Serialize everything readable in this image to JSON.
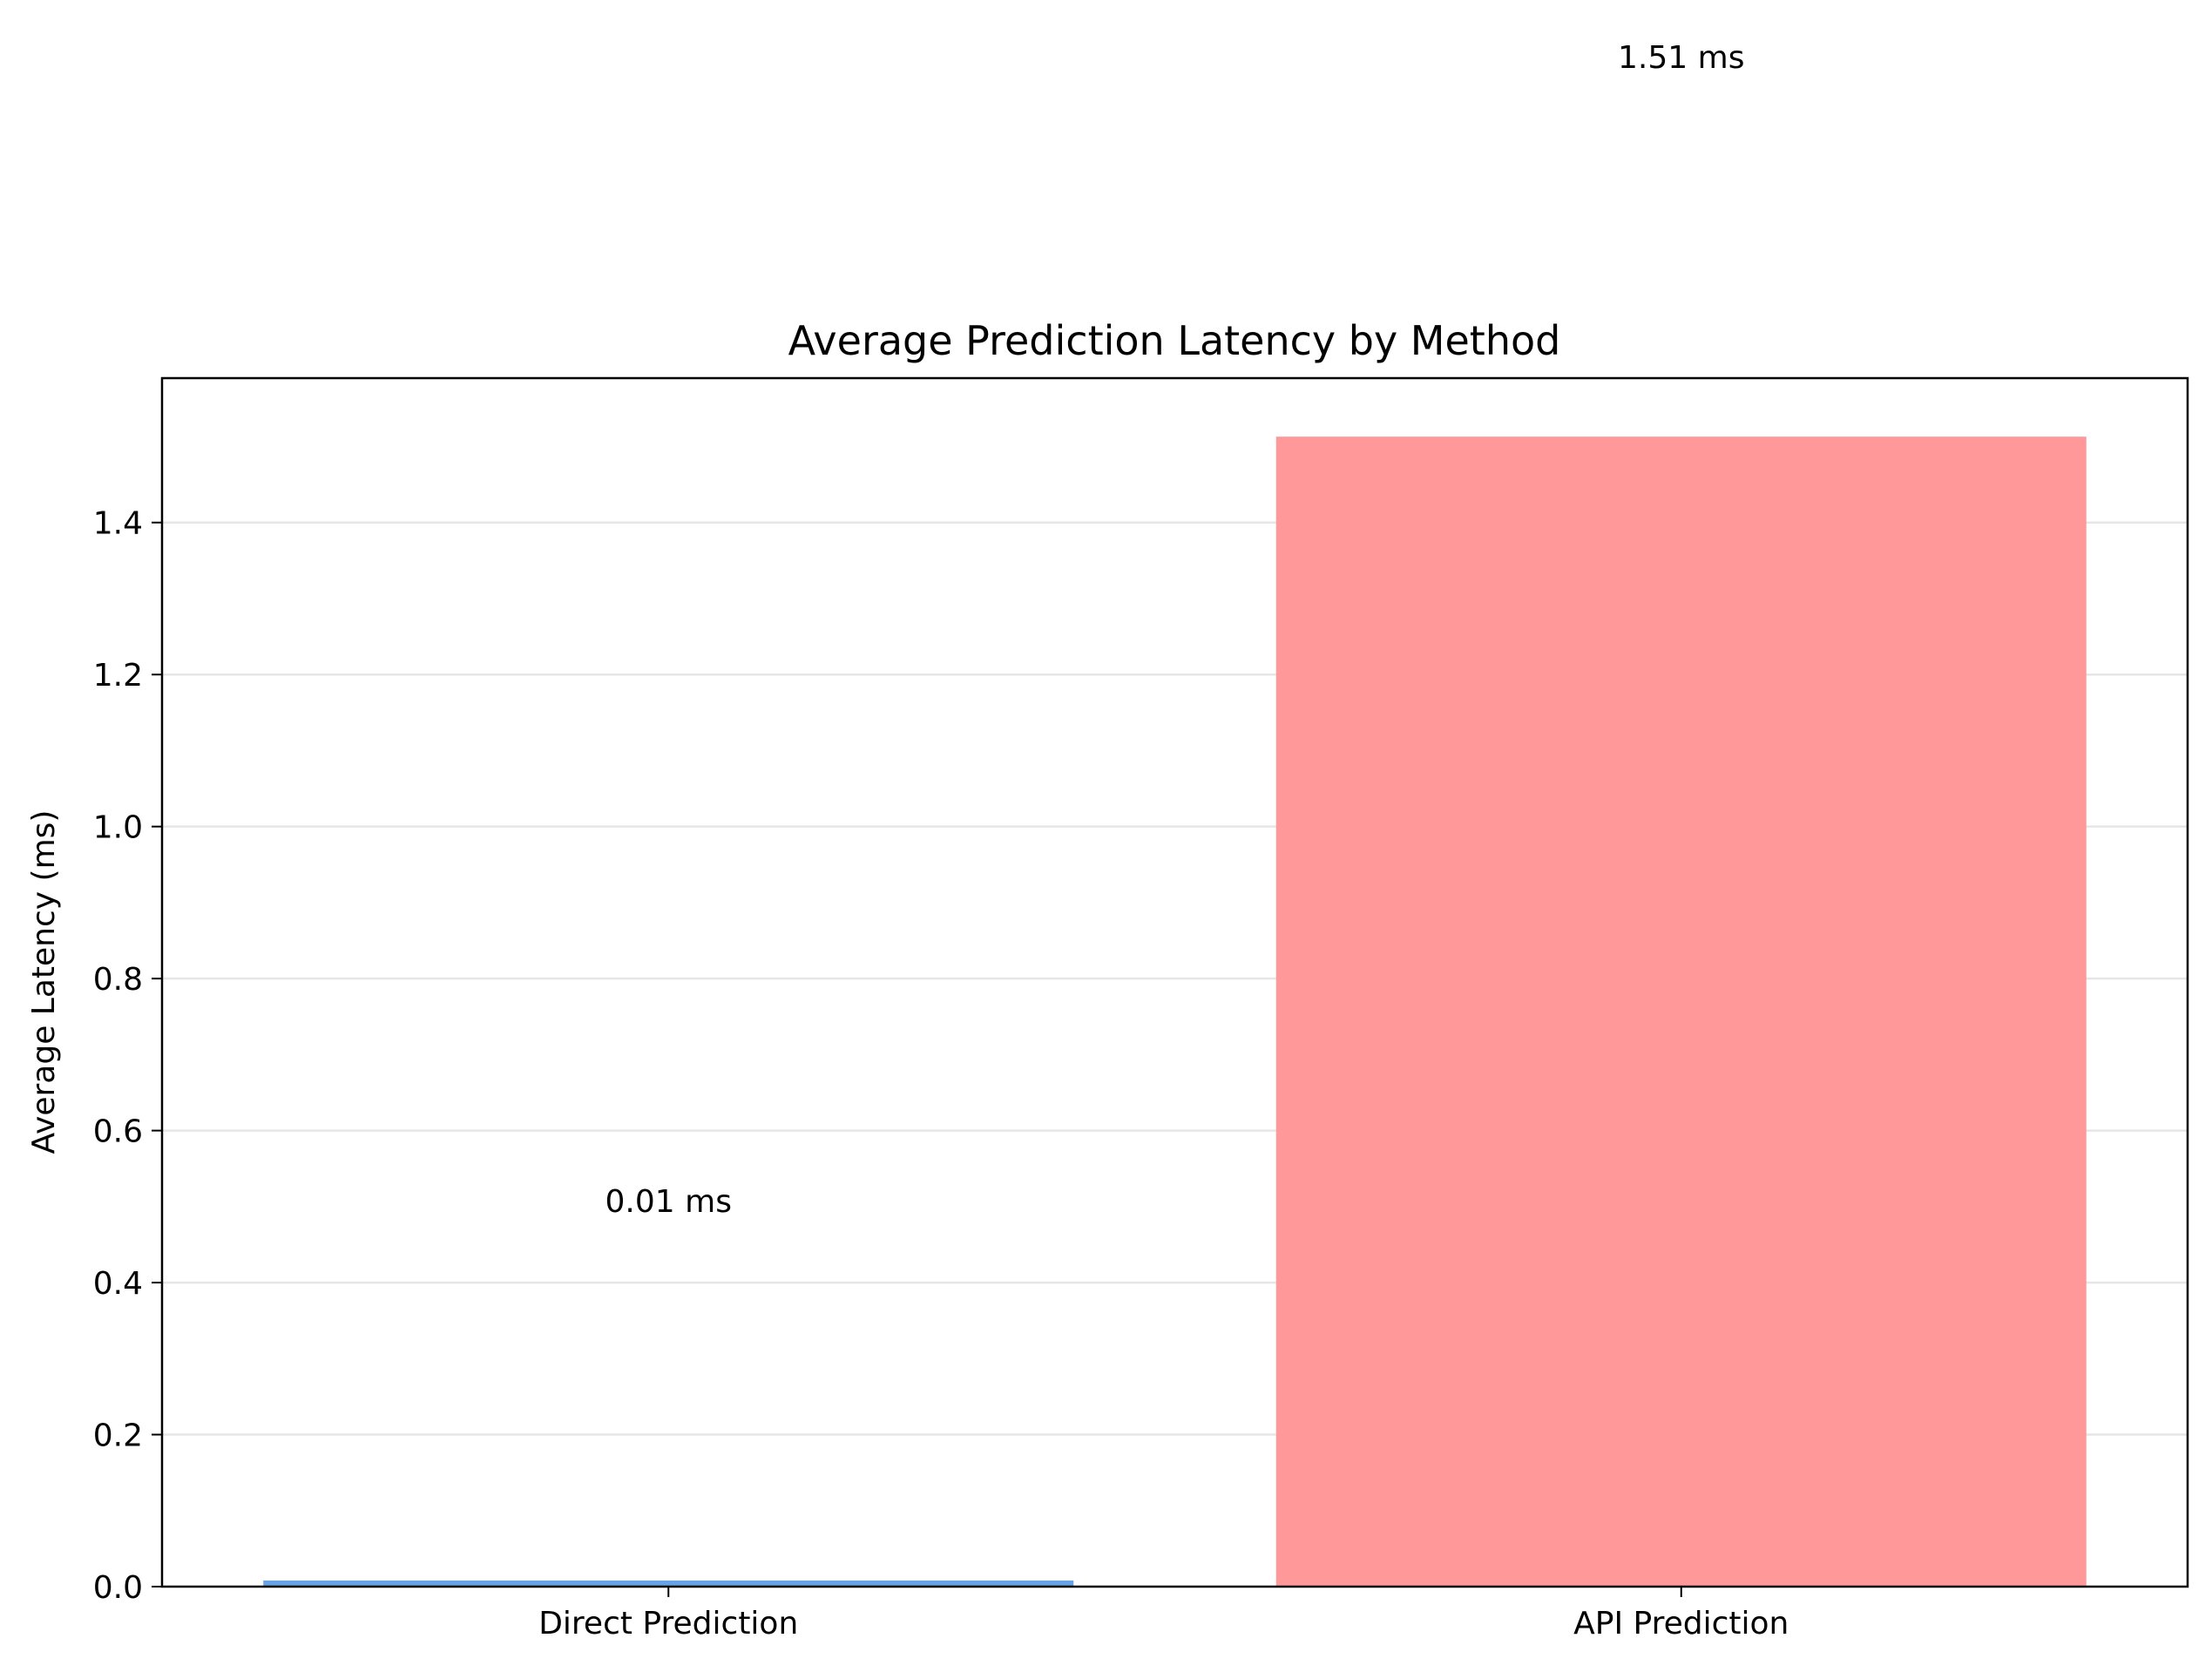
{
  "chart_data": {
    "type": "bar",
    "title": "Average Prediction Latency by Method",
    "xlabel": "",
    "ylabel": "Average Latency (ms)",
    "categories": [
      "Direct Prediction",
      "API Prediction"
    ],
    "values": [
      0.008,
      1.513
    ],
    "value_labels": [
      "0.01 ms",
      "1.51 ms"
    ],
    "bar_colors": [
      "#66a3e6",
      "#ff9999"
    ],
    "ylim": [
      0,
      1.59
    ],
    "yticks": [
      0.0,
      0.2,
      0.4,
      0.6,
      0.8,
      1.0,
      1.2,
      1.4
    ],
    "ytick_labels": [
      "0.0",
      "0.2",
      "0.4",
      "0.6",
      "0.8",
      "1.0",
      "1.2",
      "1.4"
    ],
    "grid": "y-axis, light gray",
    "legend": "none"
  }
}
